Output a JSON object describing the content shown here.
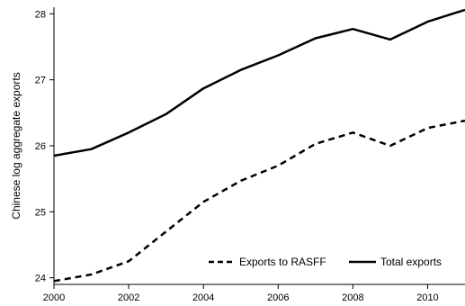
{
  "chart_data": {
    "type": "line",
    "xlabel": "",
    "ylabel": "Chinese log aggregate exports",
    "xlim": [
      2000,
      2011
    ],
    "ylim": [
      23.9,
      28.1
    ],
    "xticks": [
      2000,
      2002,
      2004,
      2006,
      2008,
      2010
    ],
    "yticks": [
      24,
      25,
      26,
      27,
      28
    ],
    "grid": false,
    "legend_position": "bottom-right",
    "x": [
      2000,
      2001,
      2002,
      2003,
      2004,
      2005,
      2006,
      2007,
      2008,
      2009,
      2010,
      2011
    ],
    "series": [
      {
        "name": "Exports to RASFF",
        "style": "dashed",
        "color": "#000000",
        "values": [
          23.95,
          24.05,
          24.25,
          24.7,
          25.15,
          25.47,
          25.7,
          26.03,
          26.2,
          26.0,
          26.27,
          26.38
        ]
      },
      {
        "name": "Total exports",
        "style": "solid",
        "color": "#000000",
        "values": [
          25.85,
          25.95,
          26.2,
          26.48,
          26.87,
          27.15,
          27.37,
          27.63,
          27.77,
          27.61,
          27.88,
          28.06
        ]
      }
    ]
  }
}
